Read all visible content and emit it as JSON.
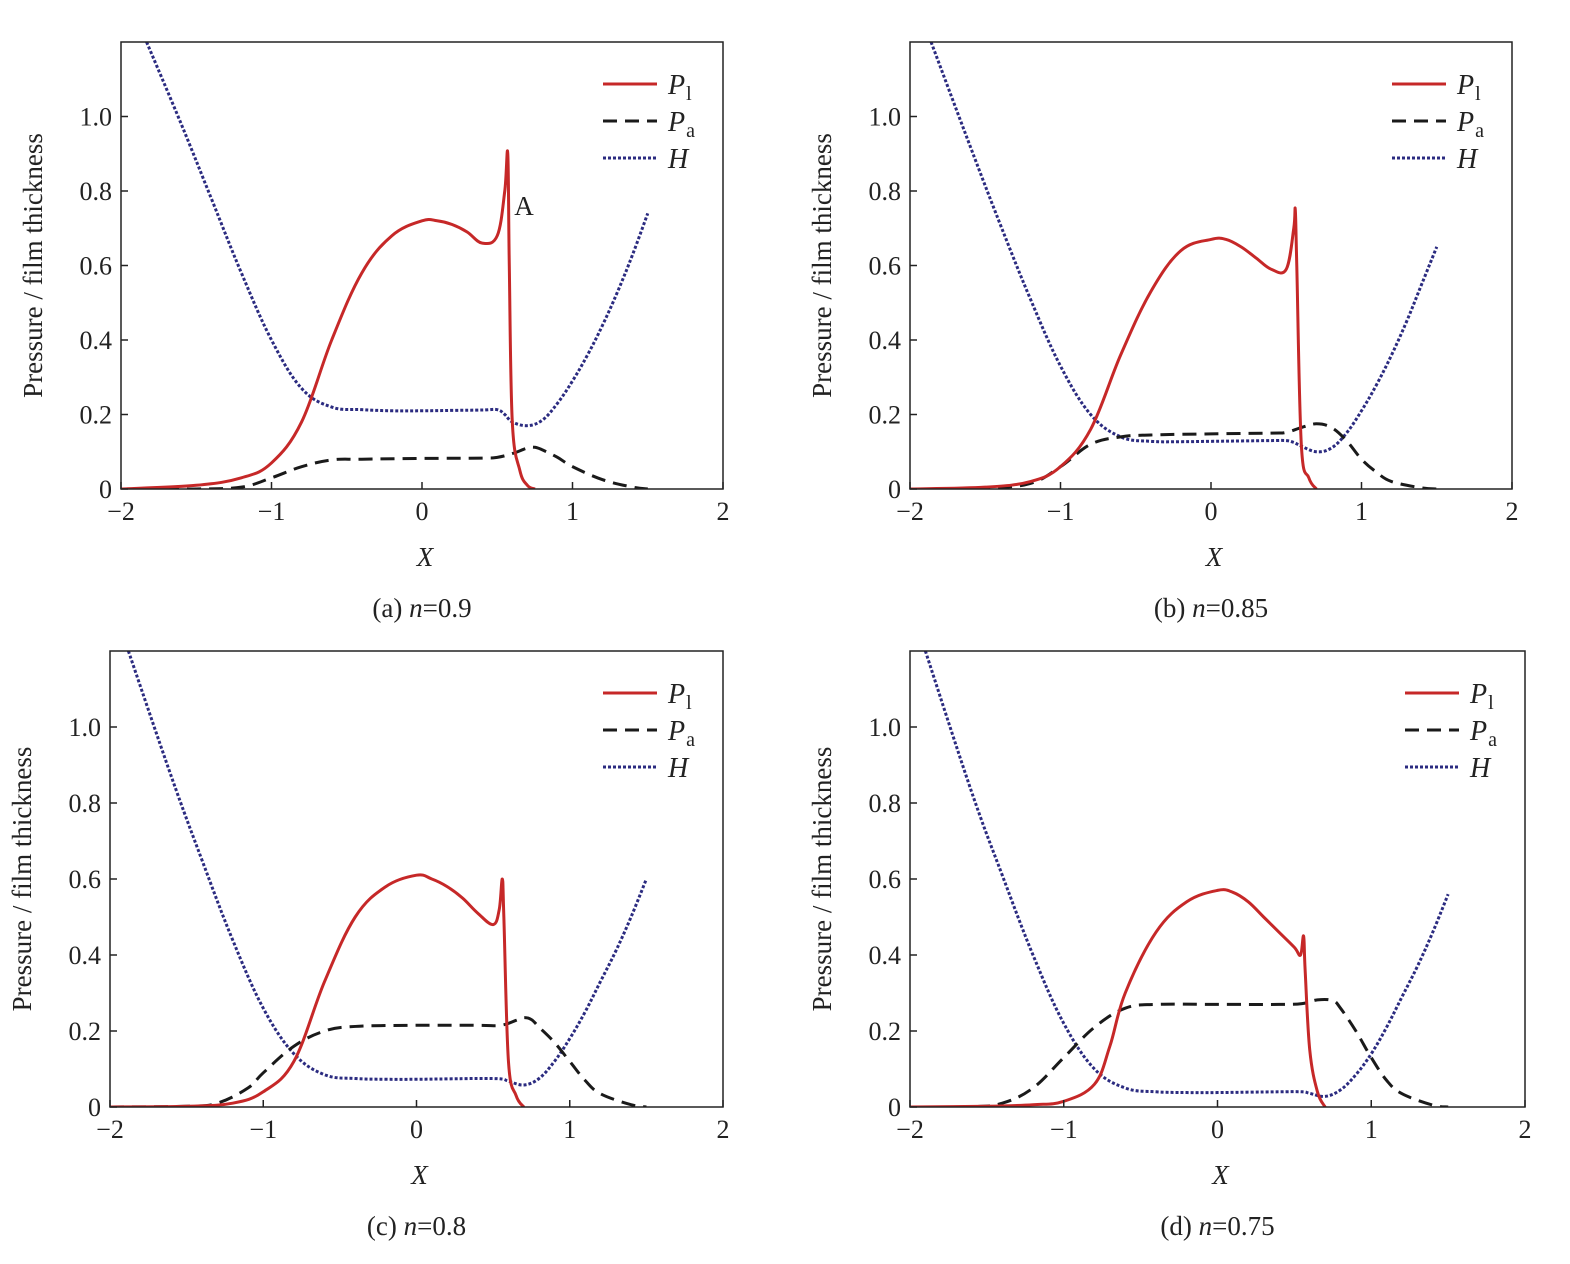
{
  "colors": {
    "Pl": "#c62828",
    "Pa": "#1a1a1a",
    "H": "#2b2b80"
  },
  "legend": [
    {
      "key": "Pl",
      "base": "P",
      "sub": "l"
    },
    {
      "key": "Pa",
      "base": "P",
      "sub": "a"
    },
    {
      "key": "H",
      "base": "H",
      "sub": ""
    }
  ],
  "chart_data": [
    {
      "type": "line",
      "caption": {
        "prefix": "(a) ",
        "var": "n",
        "suffix": "=0.9"
      },
      "xlabel": "X",
      "ylabel": "Pressure / film thickness",
      "xlim": [
        -2,
        2
      ],
      "ylim": [
        0,
        1.2
      ],
      "xticks": [
        "−2",
        "−1",
        "0",
        "1",
        "2"
      ],
      "yticks": [
        "0",
        "0.2",
        "0.4",
        "0.6",
        "0.8",
        "1.0"
      ],
      "legend_position": "top-right",
      "annotations": [
        {
          "text": "A",
          "x": 0.6,
          "y": 0.76
        }
      ],
      "series": [
        {
          "key": "Pl",
          "x": [
            -2,
            -1.5,
            -1.2,
            -1,
            -0.8,
            -0.6,
            -0.4,
            -0.2,
            0,
            0.1,
            0.2,
            0.3,
            0.4,
            0.5,
            0.55,
            0.57,
            0.58,
            0.6,
            0.65,
            0.7,
            0.75
          ],
          "y": [
            0,
            0.01,
            0.03,
            0.07,
            0.18,
            0.4,
            0.58,
            0.68,
            0.72,
            0.72,
            0.71,
            0.69,
            0.66,
            0.68,
            0.8,
            0.9,
            0.6,
            0.18,
            0.05,
            0.01,
            0
          ]
        },
        {
          "key": "Pa",
          "x": [
            -2,
            -1.5,
            -1.2,
            -1,
            -0.8,
            -0.6,
            -0.4,
            0,
            0.4,
            0.5,
            0.6,
            0.7,
            0.75,
            0.8,
            0.9,
            1,
            1.2,
            1.4,
            1.5
          ],
          "y": [
            0,
            0,
            0.005,
            0.03,
            0.06,
            0.078,
            0.08,
            0.082,
            0.083,
            0.085,
            0.095,
            0.11,
            0.112,
            0.105,
            0.085,
            0.06,
            0.025,
            0.005,
            0
          ]
        },
        {
          "key": "H",
          "x": [
            -1.83,
            -1.6,
            -1.4,
            -1.2,
            -1,
            -0.8,
            -0.6,
            -0.4,
            -0.2,
            0,
            0.2,
            0.4,
            0.5,
            0.55,
            0.6,
            0.7,
            0.8,
            0.9,
            1,
            1.1,
            1.2,
            1.3,
            1.4,
            1.5
          ],
          "y": [
            1.2,
            0.98,
            0.78,
            0.58,
            0.4,
            0.27,
            0.22,
            0.213,
            0.21,
            0.21,
            0.211,
            0.212,
            0.213,
            0.2,
            0.18,
            0.17,
            0.185,
            0.23,
            0.29,
            0.36,
            0.44,
            0.53,
            0.63,
            0.74
          ]
        }
      ]
    },
    {
      "type": "line",
      "caption": {
        "prefix": "(b) ",
        "var": "n",
        "suffix": "=0.85"
      },
      "xlabel": "X",
      "ylabel": "Pressure / film thickness",
      "xlim": [
        -2,
        2
      ],
      "ylim": [
        0,
        1.2
      ],
      "xticks": [
        "−2",
        "−1",
        "0",
        "1",
        "2"
      ],
      "yticks": [
        "0",
        "0.2",
        "0.4",
        "0.6",
        "0.8",
        "1.0"
      ],
      "legend_position": "top-right",
      "annotations": [],
      "series": [
        {
          "key": "Pl",
          "x": [
            -2,
            -1.5,
            -1.2,
            -1,
            -0.8,
            -0.6,
            -0.4,
            -0.2,
            0,
            0.1,
            0.2,
            0.3,
            0.4,
            0.5,
            0.55,
            0.56,
            0.57,
            0.6,
            0.65,
            0.7
          ],
          "y": [
            0,
            0.005,
            0.02,
            0.06,
            0.16,
            0.36,
            0.53,
            0.64,
            0.67,
            0.67,
            0.65,
            0.62,
            0.59,
            0.59,
            0.7,
            0.75,
            0.6,
            0.12,
            0.03,
            0
          ]
        },
        {
          "key": "Pa",
          "x": [
            -2,
            -1.5,
            -1.2,
            -1,
            -0.8,
            -0.6,
            -0.4,
            0,
            0.4,
            0.5,
            0.6,
            0.7,
            0.8,
            0.9,
            1,
            1.1,
            1.2,
            1.4,
            1.5
          ],
          "y": [
            0,
            0.002,
            0.015,
            0.06,
            0.12,
            0.14,
            0.145,
            0.148,
            0.15,
            0.152,
            0.165,
            0.175,
            0.165,
            0.13,
            0.08,
            0.045,
            0.02,
            0.003,
            0
          ]
        },
        {
          "key": "H",
          "x": [
            -1.86,
            -1.6,
            -1.4,
            -1.2,
            -1,
            -0.8,
            -0.6,
            -0.4,
            -0.2,
            0,
            0.2,
            0.4,
            0.5,
            0.55,
            0.6,
            0.7,
            0.8,
            0.9,
            1,
            1.1,
            1.2,
            1.3,
            1.4,
            1.5
          ],
          "y": [
            1.2,
            0.92,
            0.71,
            0.51,
            0.33,
            0.2,
            0.14,
            0.128,
            0.127,
            0.128,
            0.129,
            0.13,
            0.13,
            0.125,
            0.115,
            0.1,
            0.11,
            0.15,
            0.21,
            0.28,
            0.36,
            0.45,
            0.55,
            0.65
          ]
        }
      ]
    },
    {
      "type": "line",
      "caption": {
        "prefix": "(c) ",
        "var": "n",
        "suffix": "=0.8"
      },
      "xlabel": "X",
      "ylabel": "Pressure / film thickness",
      "xlim": [
        -2,
        2
      ],
      "ylim": [
        0,
        1.2
      ],
      "xticks": [
        "−2",
        "−1",
        "0",
        "1",
        "2"
      ],
      "yticks": [
        "0",
        "0.2",
        "0.4",
        "0.6",
        "0.8",
        "1.0"
      ],
      "legend_position": "top-right",
      "annotations": [],
      "series": [
        {
          "key": "Pl",
          "x": [
            -2,
            -1.5,
            -1.2,
            -1,
            -0.8,
            -0.6,
            -0.4,
            -0.2,
            0,
            0.1,
            0.2,
            0.3,
            0.4,
            0.5,
            0.54,
            0.56,
            0.57,
            0.6,
            0.65,
            0.7
          ],
          "y": [
            0,
            0.002,
            0.01,
            0.04,
            0.12,
            0.33,
            0.5,
            0.58,
            0.61,
            0.6,
            0.58,
            0.55,
            0.51,
            0.48,
            0.52,
            0.6,
            0.5,
            0.12,
            0.03,
            0
          ]
        },
        {
          "key": "Pa",
          "x": [
            -2,
            -1.5,
            -1.3,
            -1.1,
            -1,
            -0.8,
            -0.6,
            -0.4,
            0,
            0.4,
            0.55,
            0.65,
            0.7,
            0.75,
            0.8,
            0.9,
            1,
            1.1,
            1.2,
            1.4,
            1.5
          ],
          "y": [
            0,
            0.002,
            0.01,
            0.05,
            0.09,
            0.16,
            0.2,
            0.212,
            0.215,
            0.215,
            0.215,
            0.228,
            0.235,
            0.23,
            0.21,
            0.17,
            0.12,
            0.07,
            0.035,
            0.006,
            0
          ]
        },
        {
          "key": "H",
          "x": [
            -1.88,
            -1.6,
            -1.4,
            -1.2,
            -1,
            -0.8,
            -0.6,
            -0.4,
            -0.2,
            0,
            0.2,
            0.4,
            0.55,
            0.6,
            0.7,
            0.8,
            0.9,
            1,
            1.1,
            1.2,
            1.3,
            1.4,
            1.5
          ],
          "y": [
            1.2,
            0.87,
            0.65,
            0.44,
            0.26,
            0.14,
            0.085,
            0.075,
            0.073,
            0.073,
            0.074,
            0.075,
            0.074,
            0.068,
            0.058,
            0.075,
            0.12,
            0.18,
            0.25,
            0.33,
            0.41,
            0.5,
            0.6
          ]
        }
      ]
    },
    {
      "type": "line",
      "caption": {
        "prefix": "(d) ",
        "var": "n",
        "suffix": "=0.75"
      },
      "xlabel": "X",
      "ylabel": "Pressure / film thickness",
      "xlim": [
        -2,
        2
      ],
      "ylim": [
        0,
        1.2
      ],
      "xticks": [
        "−2",
        "−1",
        "0",
        "1",
        "2"
      ],
      "yticks": [
        "0",
        "0.2",
        "0.4",
        "0.6",
        "0.8",
        "1.0"
      ],
      "legend_position": "top-right",
      "annotations": [],
      "series": [
        {
          "key": "Pl",
          "x": [
            -2,
            -1.5,
            -1.2,
            -1,
            -0.8,
            -0.7,
            -0.6,
            -0.4,
            -0.2,
            0,
            0.1,
            0.2,
            0.3,
            0.4,
            0.5,
            0.54,
            0.56,
            0.57,
            0.6,
            0.65,
            0.7
          ],
          "y": [
            0,
            0.002,
            0.006,
            0.015,
            0.06,
            0.16,
            0.3,
            0.46,
            0.54,
            0.57,
            0.565,
            0.54,
            0.5,
            0.46,
            0.42,
            0.4,
            0.45,
            0.36,
            0.15,
            0.04,
            0
          ]
        },
        {
          "key": "Pa",
          "x": [
            -2,
            -1.6,
            -1.4,
            -1.2,
            -1,
            -0.8,
            -0.6,
            -0.4,
            0,
            0.4,
            0.55,
            0.65,
            0.75,
            0.8,
            0.9,
            1,
            1.1,
            1.2,
            1.4,
            1.5
          ],
          "y": [
            0,
            0.001,
            0.01,
            0.05,
            0.13,
            0.21,
            0.26,
            0.27,
            0.27,
            0.27,
            0.272,
            0.282,
            0.28,
            0.26,
            0.2,
            0.13,
            0.07,
            0.035,
            0.005,
            0
          ]
        },
        {
          "key": "H",
          "x": [
            -1.9,
            -1.6,
            -1.4,
            -1.2,
            -1,
            -0.8,
            -0.6,
            -0.4,
            -0.2,
            0,
            0.2,
            0.4,
            0.55,
            0.6,
            0.7,
            0.8,
            0.9,
            1,
            1.1,
            1.2,
            1.3,
            1.4,
            1.5
          ],
          "y": [
            1.2,
            0.83,
            0.61,
            0.4,
            0.22,
            0.1,
            0.05,
            0.04,
            0.038,
            0.038,
            0.039,
            0.04,
            0.04,
            0.036,
            0.028,
            0.045,
            0.085,
            0.14,
            0.21,
            0.29,
            0.37,
            0.46,
            0.56
          ]
        }
      ]
    }
  ]
}
